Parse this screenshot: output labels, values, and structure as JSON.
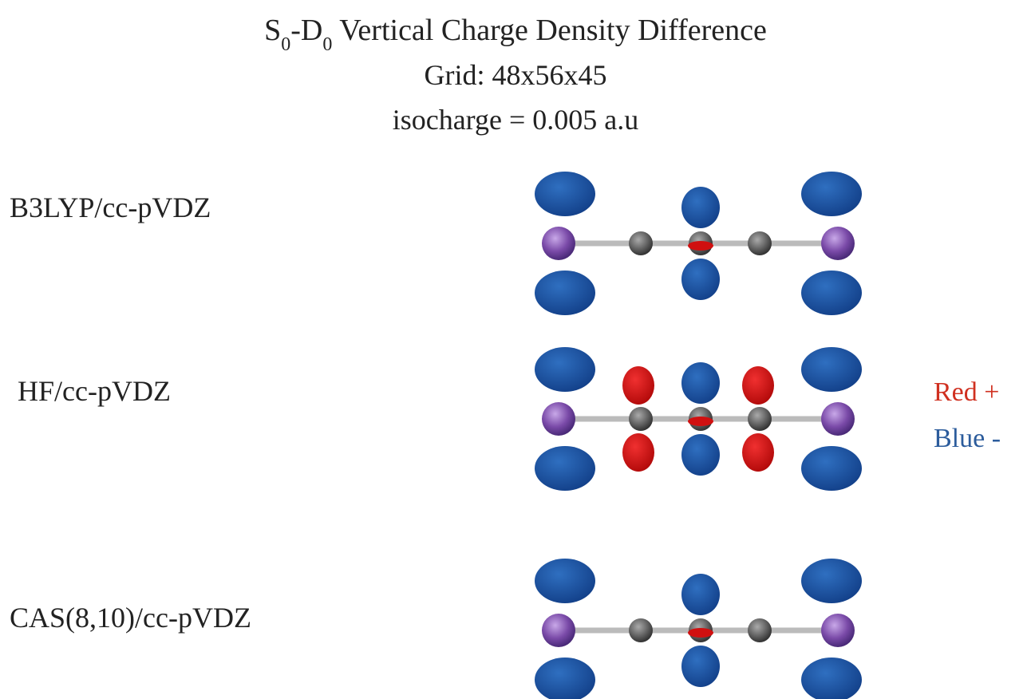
{
  "title": {
    "parts": [
      "S",
      "0",
      "-D",
      "0",
      " Vertical Charge Density Difference"
    ]
  },
  "subtitle_lines": [
    "Grid: 48x56x45",
    "isocharge = 0.005 a.u"
  ],
  "rows": [
    {
      "label": "B3LYP/cc-pVDZ"
    },
    {
      "label": "HF/cc-pVDZ"
    },
    {
      "label": "CAS(8,10)/cc-pVDZ"
    }
  ],
  "legend": {
    "red": "Red +",
    "blue": "Blue -"
  }
}
